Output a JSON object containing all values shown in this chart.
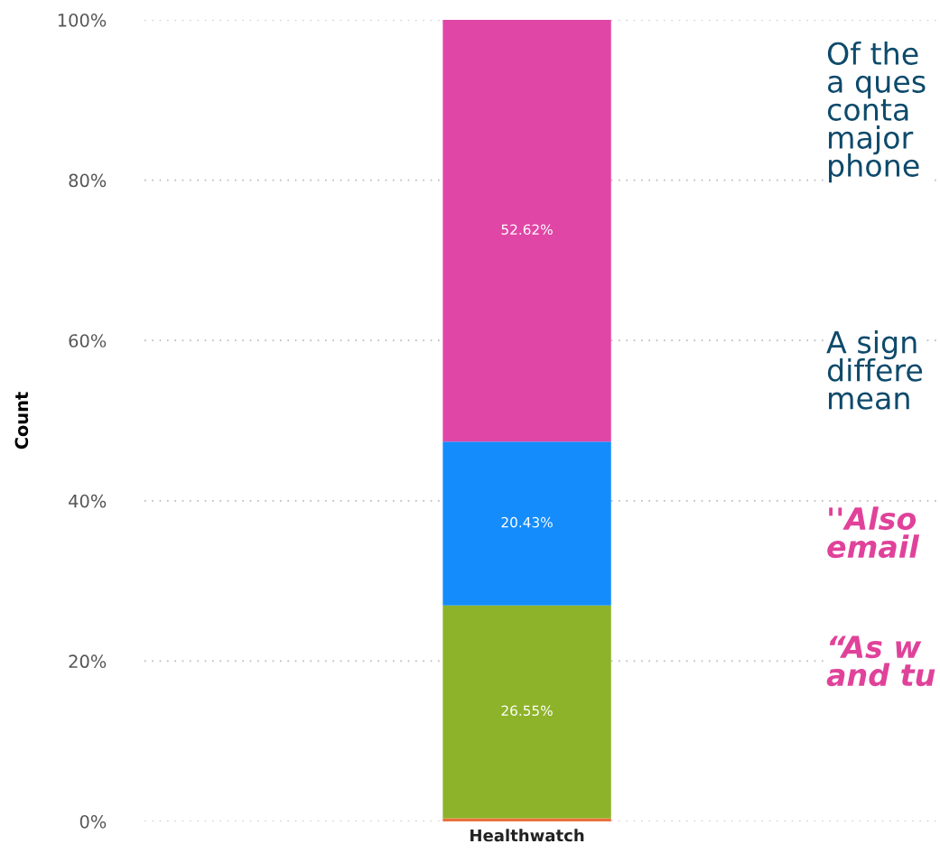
{
  "chart_data": {
    "type": "bar",
    "stacked": true,
    "ylabel": "Count",
    "categories": [
      "Healthwatch"
    ],
    "series": [
      {
        "color": "#e8703a",
        "values": [
          0.4
        ],
        "value_labels": [
          null
        ]
      },
      {
        "color": "#8db32a",
        "values": [
          26.55
        ],
        "value_labels": [
          "26.55%"
        ]
      },
      {
        "color": "#148cfc",
        "values": [
          20.43
        ],
        "value_labels": [
          "20.43%"
        ]
      },
      {
        "color": "#e046a6",
        "values": [
          52.62
        ],
        "value_labels": [
          "52.62%"
        ]
      }
    ],
    "ylim": [
      0,
      100
    ],
    "yticks": [
      {
        "value": 0,
        "label": "0%"
      },
      {
        "value": 20,
        "label": "20%"
      },
      {
        "value": 40,
        "label": "40%"
      },
      {
        "value": 60,
        "label": "60%"
      },
      {
        "value": 80,
        "label": "80%"
      },
      {
        "value": 100,
        "label": "100%"
      }
    ],
    "grid": "y",
    "legend": false,
    "annotations": [
      "Of the\na ques\nconta\nmajor\nphone",
      "A sign\ndiffere\nmean",
      "''Also\nemail",
      "“As w\nand tu"
    ]
  }
}
